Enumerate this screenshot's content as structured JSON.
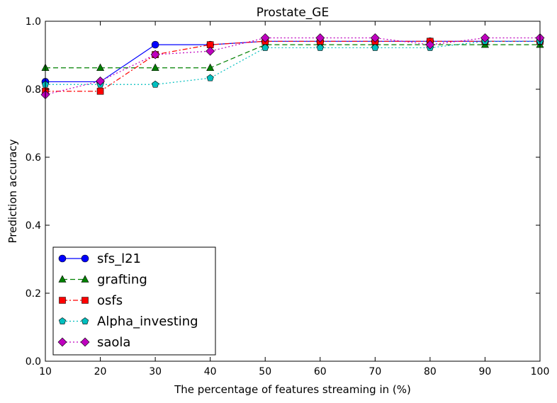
{
  "chart_data": {
    "type": "line",
    "title": "Prostate_GE",
    "xlabel": "The percentage of features streaming in (%)",
    "ylabel": "Prediction accuracy",
    "xlim": [
      10,
      100
    ],
    "ylim": [
      0.0,
      1.0
    ],
    "xticks": [
      "10",
      "20",
      "30",
      "40",
      "50",
      "60",
      "70",
      "80",
      "90",
      "100"
    ],
    "yticks": [
      "0.0",
      "0.2",
      "0.4",
      "0.6",
      "0.8",
      "1.0"
    ],
    "grid": false,
    "legend_position": "lower-left",
    "x": [
      10,
      20,
      30,
      40,
      50,
      60,
      70,
      80,
      90,
      100
    ],
    "series": [
      {
        "name": "sfs_l21",
        "color": "#0000ff",
        "marker": "circle",
        "line": "solid",
        "values": [
          0.822,
          0.822,
          0.931,
          0.931,
          0.941,
          0.941,
          0.941,
          0.941,
          0.941,
          0.941
        ]
      },
      {
        "name": "grafting",
        "color": "#008000",
        "marker": "triangle",
        "line": "dashed",
        "values": [
          0.863,
          0.863,
          0.863,
          0.863,
          0.931,
          0.931,
          0.931,
          0.931,
          0.931,
          0.931
        ]
      },
      {
        "name": "osfs",
        "color": "#ff0000",
        "marker": "square",
        "line": "dashdot",
        "values": [
          0.794,
          0.794,
          0.902,
          0.931,
          0.941,
          0.941,
          0.941,
          0.941,
          0.941,
          0.941
        ]
      },
      {
        "name": "Alpha_investing",
        "color": "#00bfbf",
        "marker": "pentagon",
        "line": "dotted",
        "values": [
          0.814,
          0.814,
          0.814,
          0.833,
          0.922,
          0.922,
          0.922,
          0.922,
          0.941,
          0.941
        ]
      },
      {
        "name": "saola",
        "color": "#bf00bf",
        "marker": "diamond",
        "line": "dotted",
        "values": [
          0.784,
          0.824,
          0.902,
          0.912,
          0.951,
          0.951,
          0.951,
          0.931,
          0.951,
          0.951
        ]
      }
    ]
  }
}
